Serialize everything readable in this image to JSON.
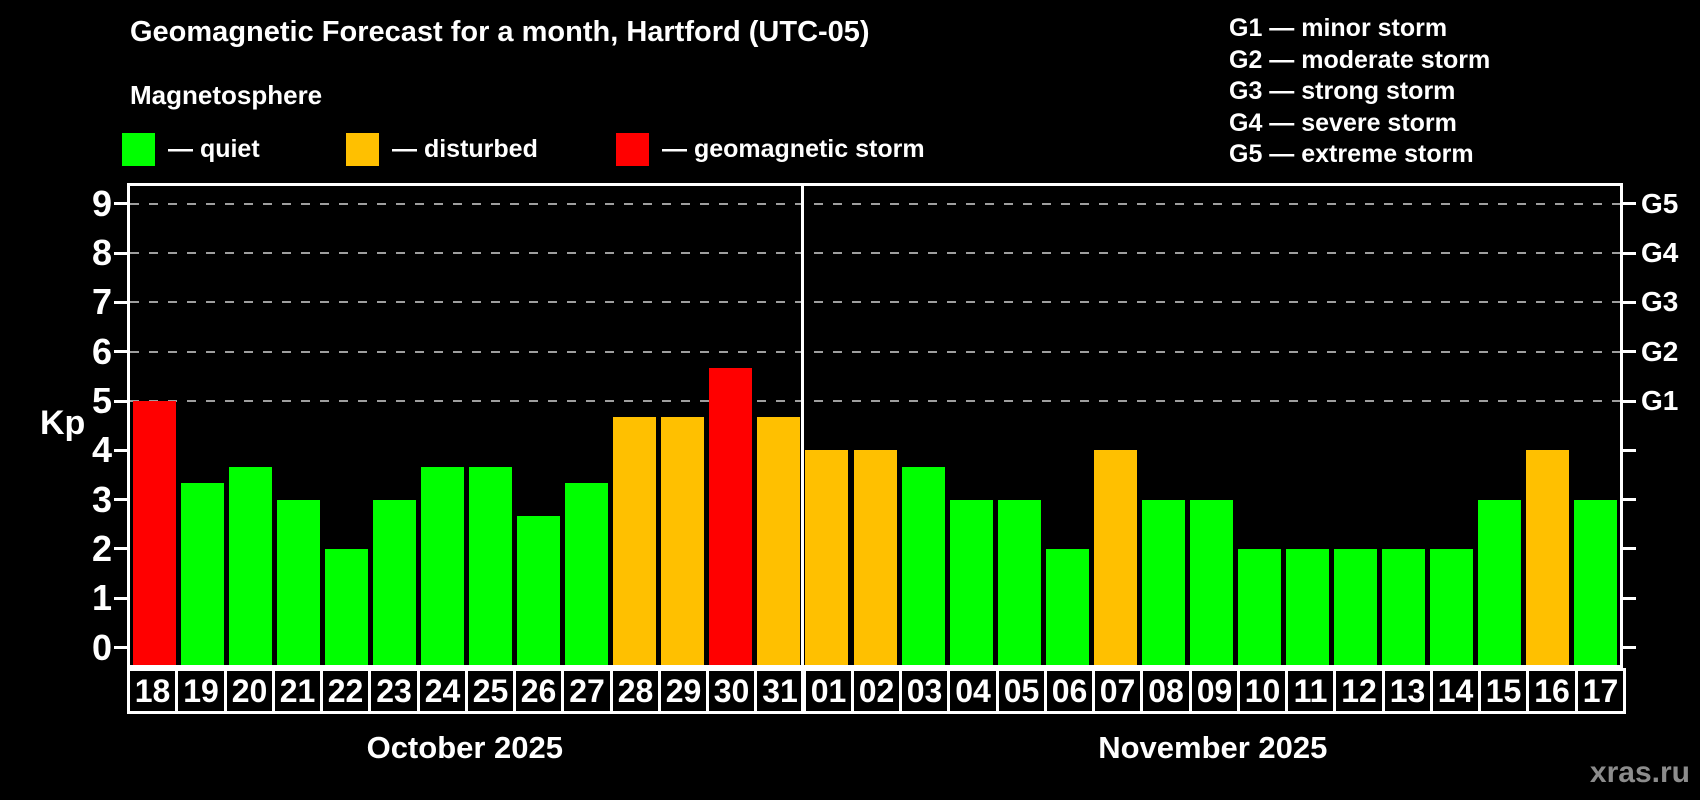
{
  "chart_data": {
    "type": "bar",
    "title": "Geomagnetic Forecast for a month, Hartford (UTC-05)",
    "subtitle": "Magnetosphere",
    "ylabel": "Kp",
    "ylim": [
      0,
      9
    ],
    "yticks": [
      0,
      1,
      2,
      3,
      4,
      5,
      6,
      7,
      8,
      9
    ],
    "grid_levels": [
      5,
      6,
      7,
      8,
      9
    ],
    "legend_position": "top-left",
    "grid": "dashed horizontal at G-storm levels only",
    "watermark": "xras.ru",
    "legend": [
      {
        "key": "quiet",
        "label": "— quiet",
        "color": "#00ff00"
      },
      {
        "key": "disturbed",
        "label": "— disturbed",
        "color": "#ffc000"
      },
      {
        "key": "storm",
        "label": "— geomagnetic storm",
        "color": "#ff0000"
      }
    ],
    "g_legend": [
      {
        "text": "G1 — minor storm",
        "axis_label": "G1",
        "kp": 5
      },
      {
        "text": "G2 — moderate storm",
        "axis_label": "G2",
        "kp": 6
      },
      {
        "text": "G3 — strong storm",
        "axis_label": "G3",
        "kp": 7
      },
      {
        "text": "G4 — severe storm",
        "axis_label": "G4",
        "kp": 8
      },
      {
        "text": "G5 — extreme storm",
        "axis_label": "G5",
        "kp": 9
      }
    ],
    "months": [
      {
        "label": "October 2025",
        "start_index": 0,
        "count": 14
      },
      {
        "label": "November 2025",
        "start_index": 14,
        "count": 17
      }
    ],
    "bars": [
      {
        "day": "18",
        "month": "October 2025",
        "kp": 5.0,
        "status": "storm"
      },
      {
        "day": "19",
        "month": "October 2025",
        "kp": 3.33,
        "status": "quiet"
      },
      {
        "day": "20",
        "month": "October 2025",
        "kp": 3.67,
        "status": "quiet"
      },
      {
        "day": "21",
        "month": "October 2025",
        "kp": 3.0,
        "status": "quiet"
      },
      {
        "day": "22",
        "month": "October 2025",
        "kp": 2.0,
        "status": "quiet"
      },
      {
        "day": "23",
        "month": "October 2025",
        "kp": 3.0,
        "status": "quiet"
      },
      {
        "day": "24",
        "month": "October 2025",
        "kp": 3.67,
        "status": "quiet"
      },
      {
        "day": "25",
        "month": "October 2025",
        "kp": 3.67,
        "status": "quiet"
      },
      {
        "day": "26",
        "month": "October 2025",
        "kp": 2.67,
        "status": "quiet"
      },
      {
        "day": "27",
        "month": "October 2025",
        "kp": 3.33,
        "status": "quiet"
      },
      {
        "day": "28",
        "month": "October 2025",
        "kp": 4.67,
        "status": "disturbed"
      },
      {
        "day": "29",
        "month": "October 2025",
        "kp": 4.67,
        "status": "disturbed"
      },
      {
        "day": "30",
        "month": "October 2025",
        "kp": 5.67,
        "status": "storm"
      },
      {
        "day": "31",
        "month": "October 2025",
        "kp": 4.67,
        "status": "disturbed"
      },
      {
        "day": "01",
        "month": "November 2025",
        "kp": 4.0,
        "status": "disturbed"
      },
      {
        "day": "02",
        "month": "November 2025",
        "kp": 4.0,
        "status": "disturbed"
      },
      {
        "day": "03",
        "month": "November 2025",
        "kp": 3.67,
        "status": "quiet"
      },
      {
        "day": "04",
        "month": "November 2025",
        "kp": 3.0,
        "status": "quiet"
      },
      {
        "day": "05",
        "month": "November 2025",
        "kp": 3.0,
        "status": "quiet"
      },
      {
        "day": "06",
        "month": "November 2025",
        "kp": 2.0,
        "status": "quiet"
      },
      {
        "day": "07",
        "month": "November 2025",
        "kp": 4.0,
        "status": "disturbed"
      },
      {
        "day": "08",
        "month": "November 2025",
        "kp": 3.0,
        "status": "quiet"
      },
      {
        "day": "09",
        "month": "November 2025",
        "kp": 3.0,
        "status": "quiet"
      },
      {
        "day": "10",
        "month": "November 2025",
        "kp": 2.0,
        "status": "quiet"
      },
      {
        "day": "11",
        "month": "November 2025",
        "kp": 2.0,
        "status": "quiet"
      },
      {
        "day": "12",
        "month": "November 2025",
        "kp": 2.0,
        "status": "quiet"
      },
      {
        "day": "13",
        "month": "November 2025",
        "kp": 2.0,
        "status": "quiet"
      },
      {
        "day": "14",
        "month": "November 2025",
        "kp": 2.0,
        "status": "quiet"
      },
      {
        "day": "15",
        "month": "November 2025",
        "kp": 3.0,
        "status": "quiet"
      },
      {
        "day": "16",
        "month": "November 2025",
        "kp": 4.0,
        "status": "disturbed"
      },
      {
        "day": "17",
        "month": "November 2025",
        "kp": 3.0,
        "status": "quiet"
      }
    ],
    "colors": {
      "background": "#000000",
      "axis": "#ffffff",
      "gridline": "#9e9e9e",
      "quiet": "#00ff00",
      "disturbed": "#ffc000",
      "storm": "#ff0000",
      "watermark": "#8c8c8c"
    }
  }
}
